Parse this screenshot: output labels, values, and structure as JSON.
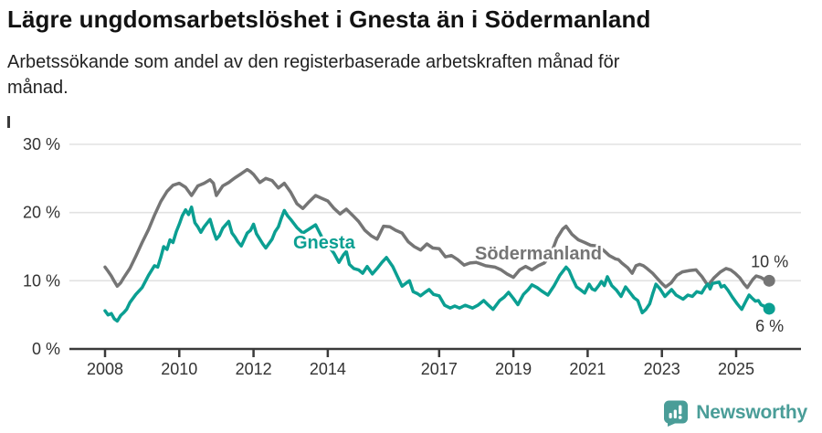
{
  "header": {
    "title": "Lägre ungdomsarbetslöshet i Gnesta än i Södermanland",
    "subtitle_lines": [
      "Arbetssökande som andel av den registerbaserade arbetskraften månad för",
      "månad."
    ]
  },
  "footer": {
    "brand": "Newsworthy"
  },
  "colors": {
    "accent_teal": "#0b9f92",
    "series_gray": "#757575",
    "brand_teal": "#4a9d98",
    "axis": "#3a3a3a",
    "grid": "#e2e2e2",
    "text": "#333333"
  },
  "chart_data": {
    "type": "line",
    "unit": "%",
    "grid": true,
    "x_axis": {
      "data_range": [
        2008.0,
        2025.9
      ],
      "axis_range": [
        2007.05,
        2026.75
      ],
      "ticks": [
        2008,
        2010,
        2012,
        2014,
        2017,
        2019,
        2021,
        2023,
        2025
      ],
      "tick_labels": [
        "2008",
        "2010",
        "2012",
        "2014",
        "2017",
        "2019",
        "2021",
        "2023",
        "2025"
      ]
    },
    "y_axis": {
      "range": [
        0,
        31.5
      ],
      "ticks": [
        0,
        10,
        20,
        30
      ],
      "tick_labels": [
        "0 %",
        "10 %",
        "20 %",
        "30 %"
      ]
    },
    "series": [
      {
        "name": "Södermanland",
        "color": "#757575",
        "end_value": 10,
        "end_label": "10 %",
        "points": [
          [
            2008.0,
            12.0
          ],
          [
            2008.08,
            11.4
          ],
          [
            2008.17,
            10.7
          ],
          [
            2008.25,
            9.9
          ],
          [
            2008.33,
            9.2
          ],
          [
            2008.42,
            9.7
          ],
          [
            2008.5,
            10.4
          ],
          [
            2008.67,
            11.8
          ],
          [
            2008.83,
            13.6
          ],
          [
            2009.0,
            15.6
          ],
          [
            2009.17,
            17.5
          ],
          [
            2009.33,
            19.6
          ],
          [
            2009.5,
            21.6
          ],
          [
            2009.67,
            23.1
          ],
          [
            2009.83,
            24.0
          ],
          [
            2010.0,
            24.3
          ],
          [
            2010.17,
            23.7
          ],
          [
            2010.33,
            22.5
          ],
          [
            2010.5,
            23.9
          ],
          [
            2010.67,
            24.3
          ],
          [
            2010.83,
            24.8
          ],
          [
            2010.92,
            24.3
          ],
          [
            2011.0,
            22.5
          ],
          [
            2011.17,
            23.9
          ],
          [
            2011.33,
            24.4
          ],
          [
            2011.5,
            25.1
          ],
          [
            2011.67,
            25.7
          ],
          [
            2011.83,
            26.3
          ],
          [
            2011.92,
            26.0
          ],
          [
            2012.0,
            25.6
          ],
          [
            2012.17,
            24.4
          ],
          [
            2012.33,
            25.0
          ],
          [
            2012.5,
            24.7
          ],
          [
            2012.67,
            23.6
          ],
          [
            2012.83,
            24.3
          ],
          [
            2013.0,
            23.0
          ],
          [
            2013.17,
            21.3
          ],
          [
            2013.33,
            20.6
          ],
          [
            2013.5,
            21.6
          ],
          [
            2013.67,
            22.5
          ],
          [
            2013.83,
            22.1
          ],
          [
            2014.0,
            21.7
          ],
          [
            2014.17,
            20.6
          ],
          [
            2014.33,
            19.8
          ],
          [
            2014.5,
            20.5
          ],
          [
            2014.67,
            19.6
          ],
          [
            2014.83,
            18.7
          ],
          [
            2015.0,
            17.4
          ],
          [
            2015.17,
            16.6
          ],
          [
            2015.33,
            16.1
          ],
          [
            2015.5,
            18.0
          ],
          [
            2015.67,
            17.9
          ],
          [
            2015.83,
            17.4
          ],
          [
            2016.0,
            17.0
          ],
          [
            2016.17,
            15.7
          ],
          [
            2016.33,
            15.0
          ],
          [
            2016.5,
            14.5
          ],
          [
            2016.67,
            15.4
          ],
          [
            2016.83,
            14.8
          ],
          [
            2017.0,
            14.7
          ],
          [
            2017.17,
            13.5
          ],
          [
            2017.33,
            13.7
          ],
          [
            2017.5,
            13.1
          ],
          [
            2017.67,
            12.3
          ],
          [
            2017.83,
            12.6
          ],
          [
            2018.0,
            12.7
          ],
          [
            2018.25,
            12.2
          ],
          [
            2018.5,
            12.0
          ],
          [
            2018.67,
            11.6
          ],
          [
            2018.83,
            11.0
          ],
          [
            2019.0,
            10.5
          ],
          [
            2019.17,
            11.6
          ],
          [
            2019.33,
            12.1
          ],
          [
            2019.5,
            11.6
          ],
          [
            2019.67,
            12.2
          ],
          [
            2019.83,
            12.6
          ],
          [
            2020.0,
            13.8
          ],
          [
            2020.17,
            16.2
          ],
          [
            2020.33,
            17.6
          ],
          [
            2020.42,
            18.0
          ],
          [
            2020.58,
            16.8
          ],
          [
            2020.75,
            16.0
          ],
          [
            2020.92,
            15.6
          ],
          [
            2021.08,
            15.2
          ],
          [
            2021.25,
            15.1
          ],
          [
            2021.42,
            14.5
          ],
          [
            2021.58,
            13.7
          ],
          [
            2021.75,
            13.2
          ],
          [
            2021.83,
            13.1
          ],
          [
            2021.92,
            12.6
          ],
          [
            2022.08,
            11.9
          ],
          [
            2022.2,
            11.1
          ],
          [
            2022.3,
            12.2
          ],
          [
            2022.4,
            12.4
          ],
          [
            2022.5,
            12.2
          ],
          [
            2022.6,
            11.8
          ],
          [
            2022.75,
            11.1
          ],
          [
            2022.9,
            10.2
          ],
          [
            2023.0,
            9.6
          ],
          [
            2023.1,
            9.1
          ],
          [
            2023.25,
            9.7
          ],
          [
            2023.4,
            10.8
          ],
          [
            2023.55,
            11.3
          ],
          [
            2023.75,
            11.5
          ],
          [
            2023.92,
            11.6
          ],
          [
            2024.08,
            10.6
          ],
          [
            2024.24,
            9.3
          ],
          [
            2024.4,
            10.4
          ],
          [
            2024.58,
            11.3
          ],
          [
            2024.73,
            11.8
          ],
          [
            2024.85,
            11.6
          ],
          [
            2024.97,
            11.1
          ],
          [
            2025.1,
            10.4
          ],
          [
            2025.22,
            9.5
          ],
          [
            2025.3,
            9.0
          ],
          [
            2025.45,
            10.2
          ],
          [
            2025.54,
            10.7
          ],
          [
            2025.66,
            10.5
          ],
          [
            2025.76,
            10.2
          ],
          [
            2025.89,
            10.0
          ]
        ]
      },
      {
        "name": "Gnesta",
        "color": "#0b9f92",
        "end_value": 6,
        "end_label": "6 %",
        "points": [
          [
            2008.0,
            5.6
          ],
          [
            2008.08,
            5.0
          ],
          [
            2008.17,
            5.2
          ],
          [
            2008.25,
            4.4
          ],
          [
            2008.33,
            4.1
          ],
          [
            2008.42,
            4.9
          ],
          [
            2008.5,
            5.3
          ],
          [
            2008.58,
            5.8
          ],
          [
            2008.67,
            6.8
          ],
          [
            2008.83,
            8.0
          ],
          [
            2009.0,
            9.0
          ],
          [
            2009.17,
            10.8
          ],
          [
            2009.33,
            12.2
          ],
          [
            2009.42,
            12.0
          ],
          [
            2009.5,
            13.4
          ],
          [
            2009.58,
            15.0
          ],
          [
            2009.67,
            14.6
          ],
          [
            2009.75,
            16.0
          ],
          [
            2009.83,
            15.6
          ],
          [
            2009.92,
            17.2
          ],
          [
            2010.0,
            18.3
          ],
          [
            2010.08,
            19.5
          ],
          [
            2010.17,
            20.4
          ],
          [
            2010.25,
            19.7
          ],
          [
            2010.33,
            20.8
          ],
          [
            2010.42,
            18.5
          ],
          [
            2010.5,
            17.9
          ],
          [
            2010.58,
            17.1
          ],
          [
            2010.67,
            17.9
          ],
          [
            2010.83,
            19.0
          ],
          [
            2010.92,
            17.3
          ],
          [
            2011.0,
            16.1
          ],
          [
            2011.08,
            16.6
          ],
          [
            2011.17,
            17.7
          ],
          [
            2011.33,
            18.7
          ],
          [
            2011.42,
            17.0
          ],
          [
            2011.5,
            16.4
          ],
          [
            2011.58,
            15.7
          ],
          [
            2011.67,
            15.1
          ],
          [
            2011.83,
            17.0
          ],
          [
            2011.92,
            17.4
          ],
          [
            2012.0,
            18.3
          ],
          [
            2012.08,
            16.9
          ],
          [
            2012.17,
            16.1
          ],
          [
            2012.25,
            15.4
          ],
          [
            2012.33,
            14.8
          ],
          [
            2012.5,
            16.1
          ],
          [
            2012.58,
            17.2
          ],
          [
            2012.67,
            17.9
          ],
          [
            2012.75,
            19.2
          ],
          [
            2012.83,
            20.3
          ],
          [
            2012.92,
            19.5
          ],
          [
            2013.0,
            19.0
          ],
          [
            2013.17,
            17.8
          ],
          [
            2013.33,
            17.0
          ],
          [
            2013.5,
            17.6
          ],
          [
            2013.67,
            18.2
          ],
          [
            2013.83,
            16.5
          ],
          [
            2014.0,
            15.3
          ],
          [
            2014.17,
            14.0
          ],
          [
            2014.3,
            12.7
          ],
          [
            2014.42,
            13.8
          ],
          [
            2014.5,
            14.3
          ],
          [
            2014.58,
            12.4
          ],
          [
            2014.7,
            11.8
          ],
          [
            2014.83,
            11.6
          ],
          [
            2014.94,
            11.1
          ],
          [
            2015.06,
            12.1
          ],
          [
            2015.2,
            11.0
          ],
          [
            2015.33,
            11.8
          ],
          [
            2015.46,
            12.7
          ],
          [
            2015.58,
            13.4
          ],
          [
            2015.75,
            12.1
          ],
          [
            2015.87,
            10.7
          ],
          [
            2016.0,
            9.2
          ],
          [
            2016.12,
            9.7
          ],
          [
            2016.2,
            10.0
          ],
          [
            2016.3,
            8.4
          ],
          [
            2016.42,
            8.1
          ],
          [
            2016.5,
            7.8
          ],
          [
            2016.62,
            8.3
          ],
          [
            2016.73,
            8.7
          ],
          [
            2016.85,
            8.0
          ],
          [
            2017.0,
            7.8
          ],
          [
            2017.15,
            6.4
          ],
          [
            2017.3,
            6.0
          ],
          [
            2017.42,
            6.3
          ],
          [
            2017.55,
            6.0
          ],
          [
            2017.7,
            6.4
          ],
          [
            2017.9,
            6.0
          ],
          [
            2018.04,
            6.4
          ],
          [
            2018.2,
            7.1
          ],
          [
            2018.33,
            6.4
          ],
          [
            2018.45,
            5.8
          ],
          [
            2018.63,
            7.1
          ],
          [
            2018.75,
            7.6
          ],
          [
            2018.87,
            8.3
          ],
          [
            2019.0,
            7.4
          ],
          [
            2019.12,
            6.5
          ],
          [
            2019.27,
            8.0
          ],
          [
            2019.4,
            8.7
          ],
          [
            2019.5,
            9.4
          ],
          [
            2019.64,
            9.0
          ],
          [
            2019.76,
            8.5
          ],
          [
            2019.93,
            7.9
          ],
          [
            2020.1,
            9.3
          ],
          [
            2020.25,
            10.8
          ],
          [
            2020.42,
            12.0
          ],
          [
            2020.5,
            11.5
          ],
          [
            2020.6,
            10.2
          ],
          [
            2020.7,
            9.1
          ],
          [
            2020.8,
            8.7
          ],
          [
            2020.92,
            8.2
          ],
          [
            2021.04,
            9.5
          ],
          [
            2021.12,
            8.8
          ],
          [
            2021.2,
            8.6
          ],
          [
            2021.3,
            9.3
          ],
          [
            2021.37,
            9.9
          ],
          [
            2021.45,
            9.3
          ],
          [
            2021.53,
            10.6
          ],
          [
            2021.65,
            9.3
          ],
          [
            2021.78,
            8.6
          ],
          [
            2021.9,
            7.7
          ],
          [
            2022.02,
            9.1
          ],
          [
            2022.15,
            8.2
          ],
          [
            2022.25,
            7.5
          ],
          [
            2022.35,
            7.1
          ],
          [
            2022.47,
            5.3
          ],
          [
            2022.57,
            5.8
          ],
          [
            2022.67,
            6.6
          ],
          [
            2022.76,
            8.2
          ],
          [
            2022.84,
            9.5
          ],
          [
            2022.95,
            8.8
          ],
          [
            2023.08,
            7.7
          ],
          [
            2023.26,
            8.7
          ],
          [
            2023.38,
            7.9
          ],
          [
            2023.57,
            7.3
          ],
          [
            2023.7,
            7.9
          ],
          [
            2023.82,
            7.7
          ],
          [
            2023.94,
            8.4
          ],
          [
            2024.07,
            8.2
          ],
          [
            2024.17,
            9.1
          ],
          [
            2024.24,
            9.5
          ],
          [
            2024.3,
            8.8
          ],
          [
            2024.36,
            9.6
          ],
          [
            2024.54,
            9.8
          ],
          [
            2024.6,
            9.1
          ],
          [
            2024.68,
            9.3
          ],
          [
            2024.78,
            8.6
          ],
          [
            2024.9,
            7.6
          ],
          [
            2025.03,
            6.6
          ],
          [
            2025.15,
            5.8
          ],
          [
            2025.27,
            7.1
          ],
          [
            2025.35,
            7.9
          ],
          [
            2025.42,
            7.5
          ],
          [
            2025.52,
            7.0
          ],
          [
            2025.6,
            7.1
          ],
          [
            2025.67,
            6.5
          ],
          [
            2025.78,
            6.2
          ],
          [
            2025.89,
            5.9
          ]
        ]
      }
    ]
  }
}
